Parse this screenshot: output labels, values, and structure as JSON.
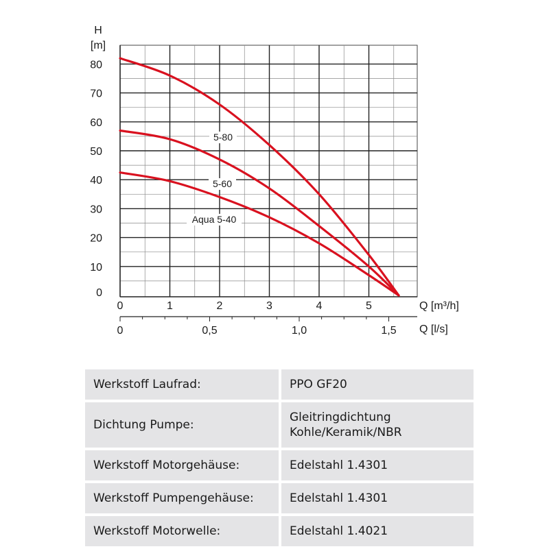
{
  "chart_data": {
    "type": "line",
    "ylabel": "H",
    "yunit": "[m]",
    "xlabel": "Q [m³/h]",
    "x2label": "Q [l/s]",
    "xlim": [
      0,
      6
    ],
    "ylim": [
      0,
      85
    ],
    "yticks": [
      0,
      10,
      20,
      30,
      40,
      50,
      60,
      70,
      80
    ],
    "xticks": [
      0,
      1,
      2,
      3,
      4,
      5
    ],
    "x2ticks": [
      {
        "q": 0,
        "label": "0"
      },
      {
        "q": 1.8,
        "label": "0,5"
      },
      {
        "q": 3.6,
        "label": "1,0"
      },
      {
        "q": 5.4,
        "label": "1,5"
      }
    ],
    "grid": true,
    "line_color": "#d9111f",
    "series": [
      {
        "name": "5-80",
        "x": [
          0,
          1,
          2,
          3,
          4,
          5,
          5.6
        ],
        "y": [
          82,
          76,
          66,
          52,
          35,
          14,
          0
        ]
      },
      {
        "name": "5-60",
        "x": [
          0,
          1,
          2,
          3,
          4,
          5,
          5.6
        ],
        "y": [
          57,
          54,
          47,
          37,
          24,
          10,
          0
        ]
      },
      {
        "name": "Aqua 5-40",
        "x": [
          0,
          1,
          2,
          3,
          4,
          5,
          5.6
        ],
        "y": [
          42.5,
          39.5,
          34,
          27,
          18,
          7,
          0
        ]
      }
    ]
  },
  "table": {
    "rows": [
      {
        "key": "Werkstoff Laufrad:",
        "value": "PPO GF20"
      },
      {
        "key": "Dichtung Pumpe:",
        "value": "Gleitringdichtung\nKohle/Keramik/NBR"
      },
      {
        "key": "Werkstoff Motorgehäuse:",
        "value": "Edelstahl 1.4301"
      },
      {
        "key": "Werkstoff Pumpengehäuse:",
        "value": "Edelstahl 1.4301"
      },
      {
        "key": "Werkstoff Motorwelle:",
        "value": "Edelstahl 1.4021"
      }
    ]
  }
}
